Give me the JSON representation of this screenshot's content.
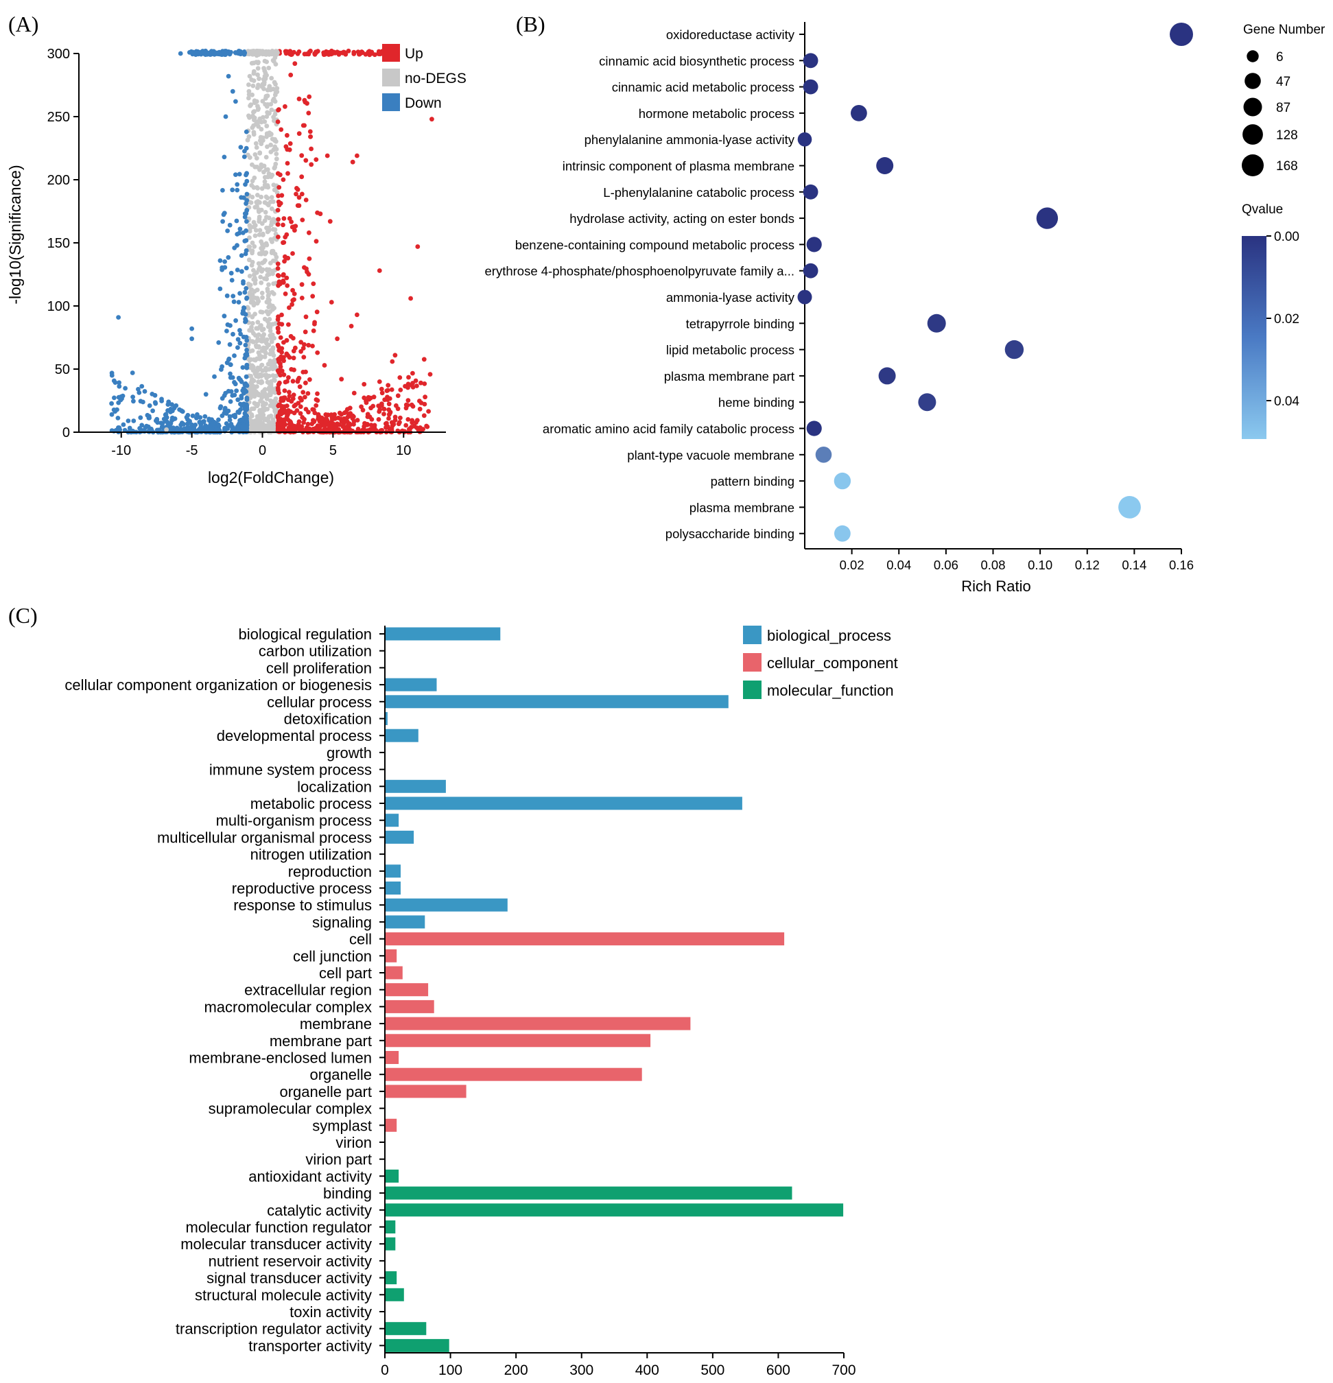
{
  "chart_data": [
    {
      "panel": "(A)",
      "type": "scatter",
      "subtype": "volcano",
      "xlabel": "log2(FoldChange)",
      "ylabel": "-log10(Significance)",
      "xlim": [
        -13,
        13
      ],
      "ylim": [
        0,
        300
      ],
      "xticks": [
        -10,
        -5,
        0,
        5,
        10
      ],
      "yticks": [
        0,
        50,
        100,
        150,
        200,
        250,
        300
      ],
      "legend": [
        {
          "label": "Up",
          "color": "#e0262b"
        },
        {
          "label": "no-DEGS",
          "color": "#c8c8c8"
        },
        {
          "label": "Down",
          "color": "#3a7fc0"
        }
      ],
      "highlight_points": {
        "up": [
          [
            12,
            248
          ],
          [
            6.7,
            219
          ],
          [
            6.4,
            214
          ],
          [
            4.8,
            167
          ],
          [
            11,
            147
          ],
          [
            8.3,
            128
          ],
          [
            10.5,
            106
          ],
          [
            6.7,
            93
          ],
          [
            6.3,
            84
          ],
          [
            9.4,
            61
          ],
          [
            9.2,
            56
          ],
          [
            8.3,
            40
          ],
          [
            7.2,
            38
          ],
          [
            6.5,
            31
          ],
          [
            2.3,
            292
          ],
          [
            2.0,
            283
          ],
          [
            2.6,
            264
          ],
          [
            1.6,
            258
          ],
          [
            2.9,
            243
          ],
          [
            3.4,
            234
          ],
          [
            4.6,
            219
          ],
          [
            1.8,
            205
          ],
          [
            2.6,
            186
          ],
          [
            4.1,
            173
          ],
          [
            3.3,
            158
          ],
          [
            1.6,
            139
          ],
          [
            2.8,
            117
          ],
          [
            4.9,
            103
          ],
          [
            3.7,
            87
          ],
          [
            5.3,
            74
          ],
          [
            3.9,
            63
          ],
          [
            4.4,
            53
          ],
          [
            5.6,
            42
          ],
          [
            6.1,
            302
          ],
          [
            4.9,
            302
          ],
          [
            3.4,
            302
          ]
        ],
        "down": [
          [
            -10.2,
            91
          ],
          [
            -9.2,
            47
          ],
          [
            -8.8,
            34
          ],
          [
            -5.0,
            82
          ],
          [
            -5.0,
            74
          ],
          [
            -5.8,
            300
          ],
          [
            -3.8,
            300
          ],
          [
            -2.4,
            282
          ],
          [
            -2.1,
            270
          ],
          [
            -1.9,
            262
          ],
          [
            -2.6,
            250
          ],
          [
            -2.7,
            218
          ],
          [
            -1.9,
            204
          ],
          [
            -1.5,
            186
          ],
          [
            -2.3,
            164
          ],
          [
            -1.8,
            148
          ],
          [
            -2.2,
            126
          ],
          [
            -1.6,
            110
          ],
          [
            -2.7,
            92
          ],
          [
            -3.1,
            71
          ],
          [
            -2.5,
            55
          ],
          [
            -4.0,
            30
          ],
          [
            -3.4,
            44
          ]
        ],
        "nodeg": [
          [
            -6.8,
            2
          ],
          [
            -0.9,
            282
          ],
          [
            0.5,
            274
          ],
          [
            -0.4,
            262
          ],
          [
            0.3,
            250
          ],
          [
            -0.6,
            236
          ],
          [
            0.6,
            222
          ],
          [
            -0.2,
            208
          ],
          [
            0.4,
            194
          ]
        ]
      }
    },
    {
      "panel": "(B)",
      "type": "scatter",
      "subtype": "bubble",
      "xlabel": "Rich Ratio",
      "xlim": [
        0.0,
        0.16
      ],
      "xticks": [
        "0.02",
        "0.04",
        "0.06",
        "0.08",
        "0.10",
        "0.12",
        "0.14",
        "0.16"
      ],
      "categories": [
        "oxidoreductase activity",
        "cinnamic acid biosynthetic process",
        "cinnamic acid metabolic process",
        "hormone metabolic process",
        "phenylalanine ammonia-lyase activity",
        "intrinsic component of plasma membrane",
        "L-phenylalanine catabolic process",
        "hydrolase activity, acting on ester bonds",
        "benzene-containing compound metabolic process",
        "erythrose 4-phosphate/phosphoenolpyruvate family a...",
        "ammonia-lyase activity",
        "tetrapyrrole binding",
        "lipid metabolic process",
        "plasma membrane part",
        "heme binding",
        "aromatic amino acid family catabolic process",
        "plant-type vacuole membrane",
        "pattern binding",
        "plasma membrane",
        "polysaccharide binding"
      ],
      "rich_ratio": [
        0.16,
        0.0025,
        0.0025,
        0.023,
        0.0,
        0.034,
        0.0025,
        0.103,
        0.004,
        0.0025,
        0.0,
        0.056,
        0.089,
        0.035,
        0.052,
        0.004,
        0.008,
        0.016,
        0.138,
        0.016
      ],
      "gene_number": [
        168,
        25,
        25,
        40,
        18,
        50,
        25,
        128,
        28,
        25,
        20,
        70,
        75,
        50,
        60,
        28,
        38,
        45,
        150,
        40
      ],
      "qvalue": [
        0.0,
        0.0,
        0.0,
        0.0,
        0.0,
        0.0,
        0.0,
        0.0,
        0.0,
        0.0,
        0.0,
        0.002,
        0.004,
        0.002,
        0.004,
        0.0,
        0.025,
        0.049,
        0.05,
        0.049
      ],
      "size_legend_title": "Gene Number",
      "size_legend": [
        6,
        47,
        87,
        128,
        168
      ],
      "color_legend_title": "Qvalue",
      "color_legend_ticks": [
        "0.00",
        "0.02",
        "0.04"
      ],
      "color_range": [
        "#2a3381",
        "#8bc9ef"
      ]
    },
    {
      "panel": "(C)",
      "type": "bar",
      "orientation": "horizontal",
      "xlim": [
        0,
        700
      ],
      "xticks": [
        0,
        100,
        200,
        300,
        400,
        500,
        600,
        700
      ],
      "legend": [
        {
          "label": "biological_process",
          "color": "#3a97c4"
        },
        {
          "label": "cellular_component",
          "color": "#e8646b"
        },
        {
          "label": "molecular_function",
          "color": "#0fa070"
        }
      ],
      "categories": [
        "biological regulation",
        "carbon utilization",
        "cell proliferation",
        "cellular component organization or biogenesis",
        "cellular process",
        "detoxification",
        "developmental process",
        "growth",
        "immune system process",
        "localization",
        "metabolic process",
        "multi-organism process",
        "multicellular organismal process",
        "nitrogen utilization",
        "reproduction",
        "reproductive process",
        "response to stimulus",
        "signaling",
        "cell",
        "cell junction",
        "cell part",
        "extracellular region",
        "macromolecular complex",
        "membrane",
        "membrane part",
        "membrane-enclosed lumen",
        "organelle",
        "organelle part",
        "supramolecular complex",
        "symplast",
        "virion",
        "virion part",
        "antioxidant activity",
        "binding",
        "catalytic activity",
        "molecular function regulator",
        "molecular transducer activity",
        "nutrient reservoir activity",
        "signal transducer activity",
        "structural molecule activity",
        "toxin activity",
        "transcription regulator activity",
        "transporter activity"
      ],
      "groups": [
        0,
        0,
        0,
        0,
        0,
        0,
        0,
        0,
        0,
        0,
        0,
        0,
        0,
        0,
        0,
        0,
        0,
        0,
        1,
        1,
        1,
        1,
        1,
        1,
        1,
        1,
        1,
        1,
        1,
        1,
        1,
        1,
        2,
        2,
        2,
        2,
        2,
        2,
        2,
        2,
        2,
        2,
        2
      ],
      "values": [
        175,
        0,
        0,
        78,
        523,
        3,
        50,
        0,
        0,
        92,
        544,
        20,
        43,
        0,
        23,
        23,
        186,
        60,
        608,
        17,
        26,
        65,
        74,
        465,
        404,
        20,
        391,
        123,
        0,
        17,
        0,
        0,
        20,
        620,
        698,
        15,
        15,
        0,
        17,
        28,
        0,
        62,
        97
      ]
    }
  ]
}
